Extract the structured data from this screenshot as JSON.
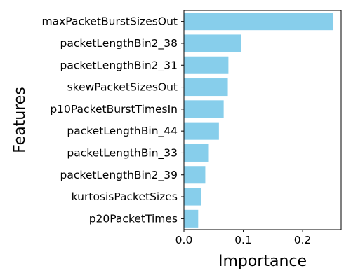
{
  "chart_data": {
    "type": "bar",
    "orientation": "horizontal",
    "title": "",
    "xlabel": "Importance",
    "ylabel": "Features",
    "xlim": [
      0,
      0.265
    ],
    "xticks": [
      0.0,
      0.1,
      0.2
    ],
    "xtick_labels": [
      "0.0",
      "0.1",
      "0.2"
    ],
    "grid": false,
    "bar_color": "#87ceeb",
    "categories": [
      "maxPacketBurstSizesOut",
      "packetLengthBin2_38",
      "packetLengthBin2_31",
      "skewPacketSizesOut",
      "p10PacketBurstTimesIn",
      "packetLengthBin_44",
      "packetLengthBin_33",
      "packetLengthBin2_39",
      "kurtosisPacketSizes",
      "p20PacketTimes"
    ],
    "values": [
      0.252,
      0.097,
      0.075,
      0.074,
      0.067,
      0.059,
      0.042,
      0.036,
      0.029,
      0.024
    ]
  }
}
